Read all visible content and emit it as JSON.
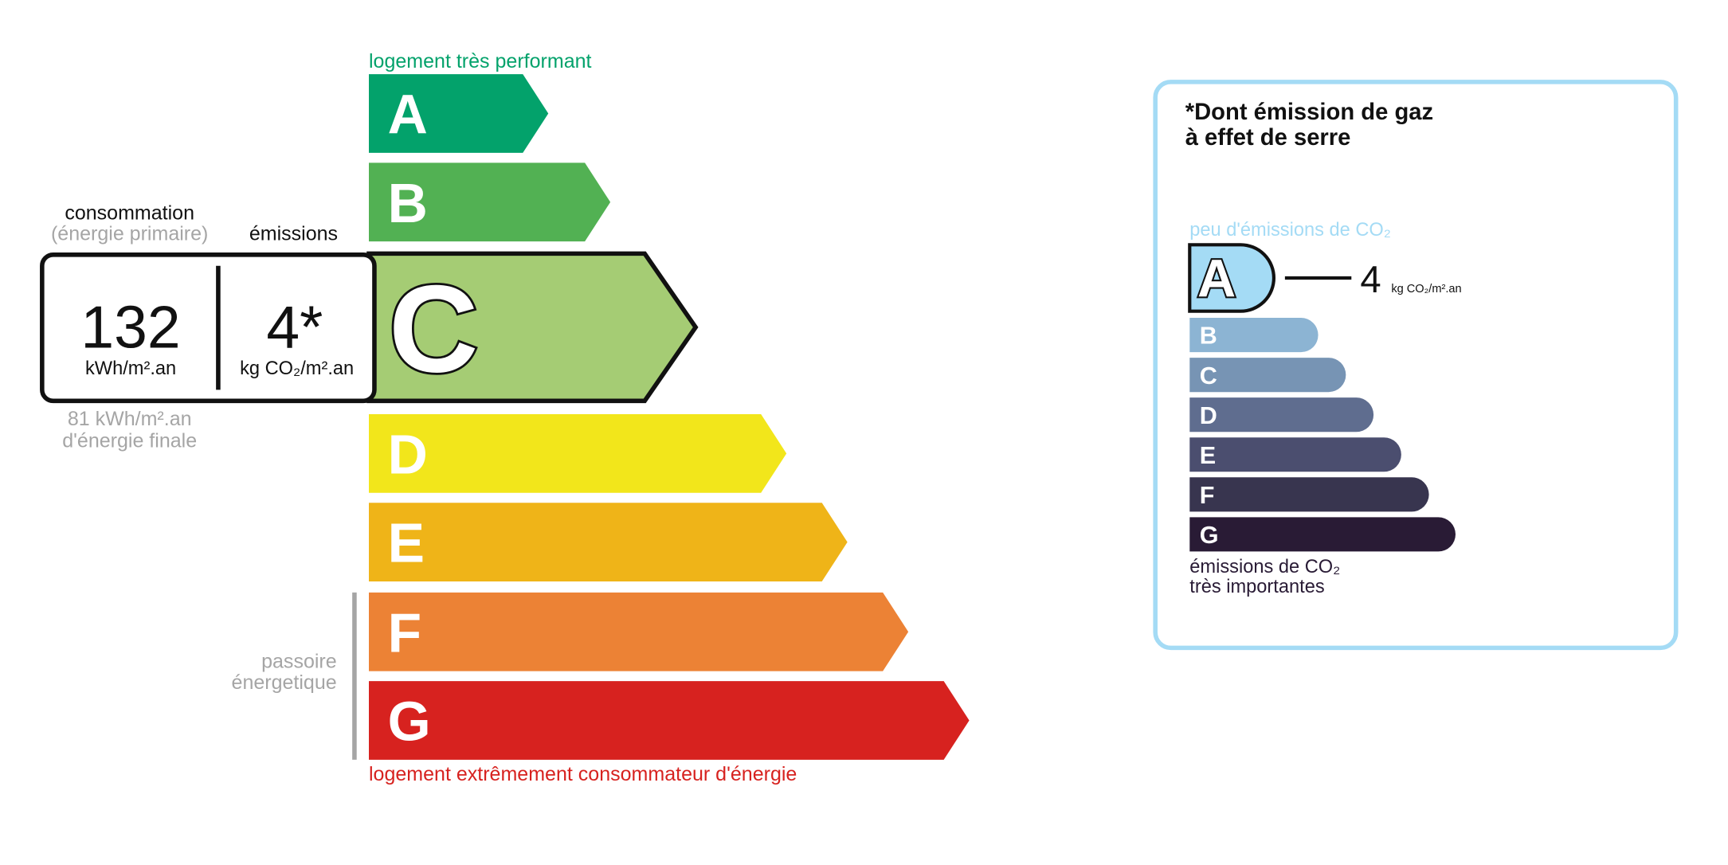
{
  "energy": {
    "top_label": "logement très performant",
    "bottom_label": "logement extrêmement consommateur d'énergie",
    "classes": [
      {
        "letter": "A",
        "color": "#03a26b"
      },
      {
        "letter": "B",
        "color": "#52b153"
      },
      {
        "letter": "C",
        "color": "#a5cc74"
      },
      {
        "letter": "D",
        "color": "#f2e61b"
      },
      {
        "letter": "E",
        "color": "#efb418"
      },
      {
        "letter": "F",
        "color": "#ec8235"
      },
      {
        "letter": "G",
        "color": "#d7221f"
      }
    ],
    "current_class": "C",
    "passoire": [
      "passoire",
      "énergetique"
    ],
    "consumption_label": "consommation",
    "consumption_sublabel": "(énergie primaire)",
    "emissions_label": "émissions",
    "consumption_value": "132",
    "consumption_unit": "kWh/m².an",
    "emissions_value": "4*",
    "emissions_unit": "kg CO₂/m².an",
    "final_energy_value": "81 kWh/m².an",
    "final_energy_label": "d'énergie finale"
  },
  "ghg": {
    "title_line1": "*Dont émission de gaz",
    "title_line2": "à effet de serre",
    "top_label": "peu d'émissions de CO₂",
    "bottom_label_line1": "émissions de CO₂",
    "bottom_label_line2": "très importantes",
    "classes": [
      {
        "letter": "A",
        "color": "#a4dbf5"
      },
      {
        "letter": "B",
        "color": "#8cb4d3"
      },
      {
        "letter": "C",
        "color": "#7794b4"
      },
      {
        "letter": "D",
        "color": "#5f6d8f"
      },
      {
        "letter": "E",
        "color": "#4b4e6f"
      },
      {
        "letter": "F",
        "color": "#38354f"
      },
      {
        "letter": "G",
        "color": "#291b35"
      }
    ],
    "current_class": "A",
    "value": "4",
    "unit": "kg CO₂/m².an"
  }
}
